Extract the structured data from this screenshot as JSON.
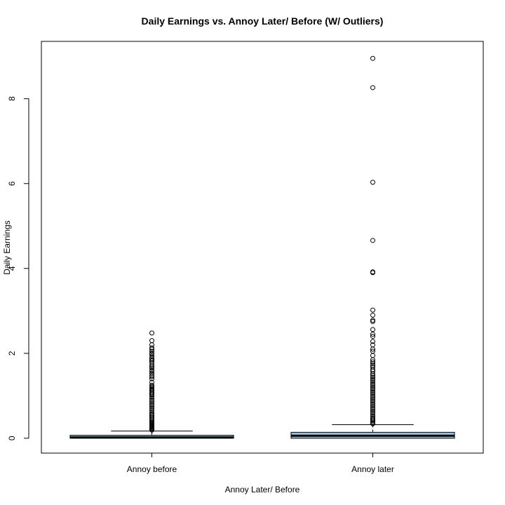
{
  "chart_data": {
    "type": "box",
    "title": "Daily Earnings vs. Annoy Later/ Before (W/ Outliers)",
    "xlabel": "Annoy Later/ Before",
    "ylabel": "Daily Earnings",
    "ylim": [
      -0.35,
      9.35
    ],
    "yticks": [
      0,
      2,
      4,
      6,
      8
    ],
    "categories": [
      "Annoy before",
      "Annoy later"
    ],
    "box_color": "#9dc6dc",
    "boxes": [
      {
        "name": "Annoy before",
        "whisker_low": 0.0,
        "q1": 0.0,
        "median": 0.02,
        "q3": 0.07,
        "whisker_high": 0.17,
        "outliers": [
          2.48,
          2.3,
          2.2,
          2.13,
          2.1,
          2.05,
          2.0,
          1.98,
          1.93,
          1.88,
          1.85,
          1.82,
          1.78,
          1.72,
          1.68,
          1.65,
          1.6,
          1.58,
          1.53,
          1.48,
          1.45,
          1.4,
          1.32,
          1.25,
          1.22,
          1.2,
          1.17,
          1.14,
          1.11,
          1.08,
          1.05,
          1.02,
          0.98,
          0.94,
          0.9,
          0.86,
          0.82,
          0.78,
          0.74,
          0.7,
          0.66,
          0.62,
          0.58,
          0.55,
          0.52,
          0.49,
          0.46,
          0.43,
          0.4,
          0.37,
          0.35,
          0.33,
          0.31,
          0.29,
          0.27,
          0.25,
          0.23,
          0.21,
          0.19
        ]
      },
      {
        "name": "Annoy later",
        "whisker_low": 0.0,
        "q1": 0.0,
        "median": 0.06,
        "q3": 0.14,
        "whisker_high": 0.32,
        "outliers": [
          8.95,
          8.26,
          6.03,
          4.66,
          3.92,
          3.9,
          3.02,
          2.9,
          2.78,
          2.75,
          2.56,
          2.45,
          2.4,
          2.28,
          2.2,
          2.1,
          2.05,
          1.95,
          1.85,
          1.8,
          1.76,
          1.72,
          1.68,
          1.62,
          1.58,
          1.52,
          1.48,
          1.44,
          1.4,
          1.36,
          1.32,
          1.28,
          1.24,
          1.2,
          1.16,
          1.12,
          1.08,
          1.04,
          1.0,
          0.96,
          0.92,
          0.88,
          0.84,
          0.8,
          0.76,
          0.72,
          0.68,
          0.64,
          0.6,
          0.56,
          0.52,
          0.48,
          0.45,
          0.42,
          0.39,
          0.36,
          0.34
        ]
      }
    ]
  }
}
